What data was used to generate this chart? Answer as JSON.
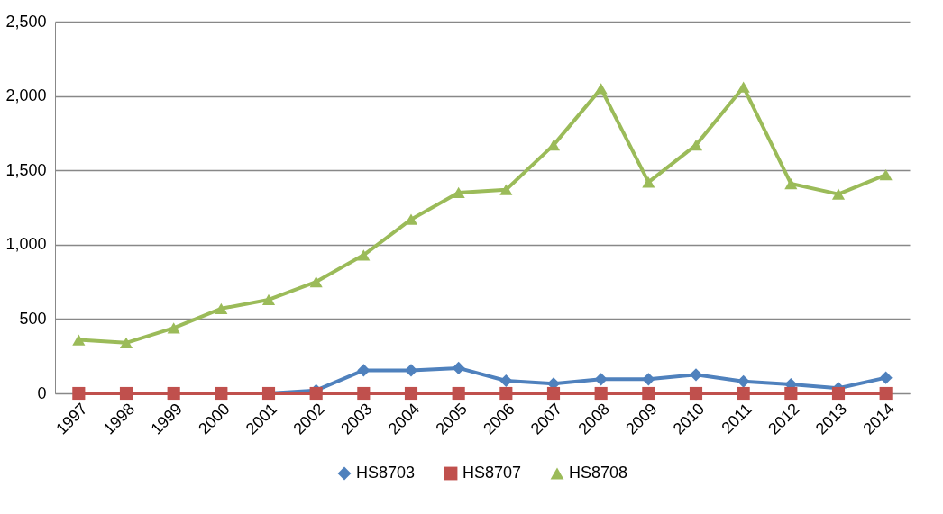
{
  "chart_data": {
    "type": "line",
    "categories": [
      "1997",
      "1998",
      "1999",
      "2000",
      "2001",
      "2002",
      "2003",
      "2004",
      "2005",
      "2006",
      "2007",
      "2008",
      "2009",
      "2010",
      "2011",
      "2012",
      "2013",
      "2014"
    ],
    "series": [
      {
        "name": "HS8703",
        "color": "#4f81bd",
        "marker": "diamond",
        "values": [
          null,
          null,
          null,
          0,
          0,
          20,
          155,
          155,
          170,
          85,
          65,
          95,
          95,
          125,
          80,
          60,
          35,
          105
        ]
      },
      {
        "name": "HS8707",
        "color": "#c0504d",
        "marker": "square",
        "values": [
          0,
          0,
          0,
          0,
          0,
          0,
          0,
          0,
          0,
          0,
          0,
          0,
          0,
          0,
          0,
          0,
          0,
          0
        ]
      },
      {
        "name": "HS8708",
        "color": "#9bbb59",
        "marker": "triangle",
        "values": [
          360,
          340,
          440,
          570,
          630,
          750,
          930,
          1170,
          1350,
          1370,
          1670,
          2050,
          1420,
          1670,
          2060,
          1410,
          1340,
          1470
        ]
      }
    ],
    "ylim": [
      0,
      2500
    ],
    "yticks": [
      {
        "value": 0,
        "label": "0"
      },
      {
        "value": 500,
        "label": "500"
      },
      {
        "value": 1000,
        "label": "1,000"
      },
      {
        "value": 1500,
        "label": "1,500"
      },
      {
        "value": 2000,
        "label": "2,000"
      },
      {
        "value": 2500,
        "label": "2,500"
      }
    ],
    "grid": "y",
    "legend": "bottom",
    "line_style": "solid"
  }
}
